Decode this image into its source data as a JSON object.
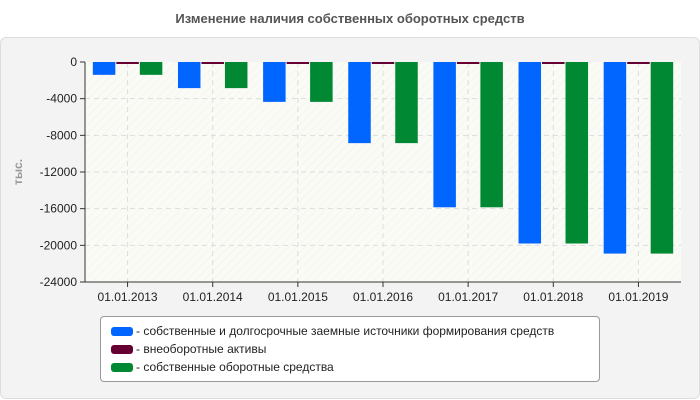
{
  "chart_data": {
    "type": "bar",
    "title": "Изменение наличия собственных оборотных средств",
    "ylabel": "тыс.",
    "xlabel": "",
    "ylim": [
      -24000,
      0
    ],
    "yticks": [
      0,
      -4000,
      -8000,
      -12000,
      -16000,
      -20000,
      -24000
    ],
    "grid": true,
    "legend_position": "bottom",
    "categories": [
      "01.01.2013",
      "01.01.2014",
      "01.01.2015",
      "01.01.2016",
      "01.01.2017",
      "01.01.2018",
      "01.01.2019"
    ],
    "series": [
      {
        "name": "- собственные и долгосрочные заемные источники формирования средств",
        "color": "#0066ff",
        "values": [
          -1400,
          -2850,
          -4350,
          -8850,
          -15850,
          -19800,
          -20900
        ]
      },
      {
        "name": "- внеоборотные активы",
        "color": "#660033",
        "values": [
          -200,
          -200,
          -200,
          -200,
          -200,
          -200,
          -200
        ]
      },
      {
        "name": "- собственные оборотные средства",
        "color": "#008833",
        "values": [
          -1400,
          -2850,
          -4350,
          -8850,
          -15850,
          -19800,
          -20900
        ]
      }
    ]
  }
}
